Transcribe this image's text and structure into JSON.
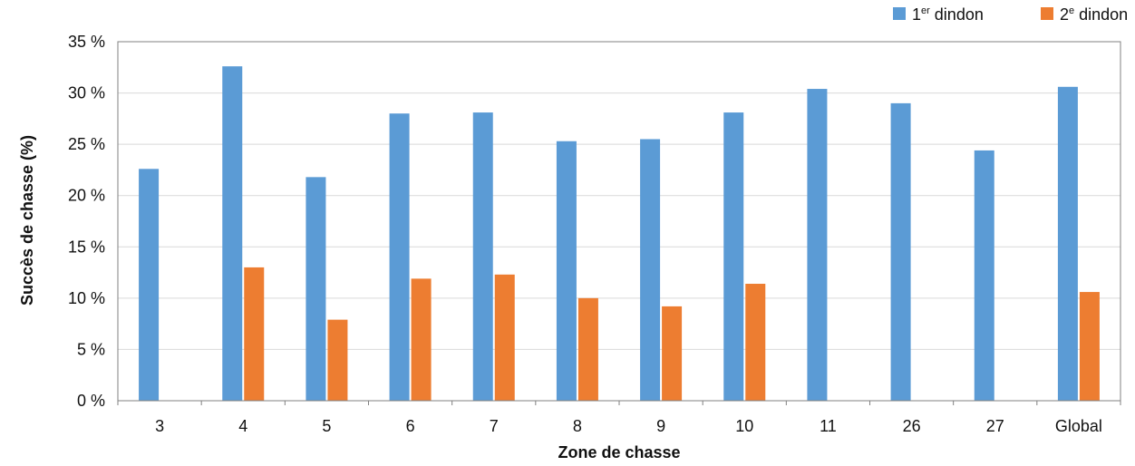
{
  "chart_data": {
    "type": "bar",
    "title": "",
    "xlabel": "Zone de chasse",
    "ylabel": "Succès de chasse (%)",
    "ylim": [
      0,
      35
    ],
    "yticks": [
      0,
      5,
      10,
      15,
      20,
      25,
      30,
      35
    ],
    "ytick_suffix": " %",
    "grid": "horizontal",
    "legend_position": "top-right",
    "categories": [
      "3",
      "4",
      "5",
      "6",
      "7",
      "8",
      "9",
      "10",
      "11",
      "26",
      "27",
      "Global"
    ],
    "series": [
      {
        "name": "1er dindon",
        "legend_base": "1",
        "legend_sup": "er",
        "legend_rest": " dindon",
        "color": "#5b9bd5",
        "values": [
          22.6,
          32.6,
          21.8,
          28.0,
          28.1,
          25.3,
          25.5,
          28.1,
          30.4,
          29.0,
          24.4,
          30.6
        ]
      },
      {
        "name": "2e dindon",
        "legend_base": "2",
        "legend_sup": "e",
        "legend_rest": " dindon",
        "color": "#ed7d31",
        "values": [
          null,
          13.0,
          7.9,
          11.9,
          12.3,
          10.0,
          9.2,
          11.4,
          null,
          null,
          null,
          10.6
        ]
      }
    ]
  }
}
